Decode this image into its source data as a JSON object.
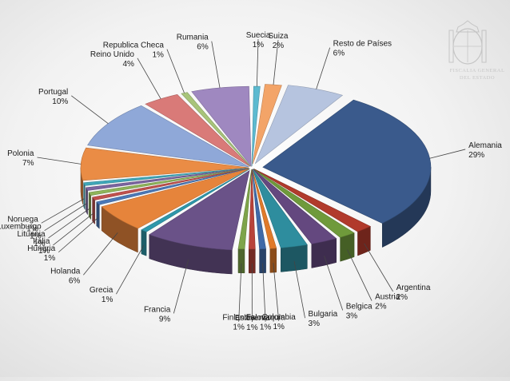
{
  "chart_data": {
    "type": "pie",
    "title": "",
    "slices": [
      {
        "label": "Alemania",
        "value": 29,
        "color": "#3a5a8c"
      },
      {
        "label": "Argentina",
        "value": 2,
        "color": "#b13a2c"
      },
      {
        "label": "Austria",
        "value": 2,
        "color": "#6f9a3b"
      },
      {
        "label": "Belgica",
        "value": 3,
        "color": "#64487f"
      },
      {
        "label": "Bulgaria",
        "value": 3,
        "color": "#2e8d9e"
      },
      {
        "label": "Colombia",
        "value": 1,
        "color": "#e07a2a"
      },
      {
        "label": "Eslovaquia",
        "value": 1,
        "color": "#3f6aa8"
      },
      {
        "label": "Eslovenia",
        "value": 1,
        "color": "#b8433a"
      },
      {
        "label": "Finlandia",
        "value": 1,
        "color": "#7ea44a"
      },
      {
        "label": "Francia",
        "value": 9,
        "color": "#6a5288"
      },
      {
        "label": "Grecia",
        "value": 1,
        "color": "#2e97aa"
      },
      {
        "label": "Holanda",
        "value": 6,
        "color": "#e6843b"
      },
      {
        "label": "Hungria",
        "value": 1,
        "color": "#4a78b8"
      },
      {
        "label": "Italia",
        "value": 1,
        "color": "#c0504d"
      },
      {
        "label": "Lituania",
        "value": 1,
        "color": "#8eb45a"
      },
      {
        "label": "Luxemburgo",
        "value": 1,
        "color": "#7a64a0"
      },
      {
        "label": "Noruega",
        "value": 1,
        "color": "#3fa6b8"
      },
      {
        "label": "Polonia",
        "value": 7,
        "color": "#ea8c45"
      },
      {
        "label": "Portugal",
        "value": 10,
        "color": "#8fa8d8"
      },
      {
        "label": "Reino Unido",
        "value": 4,
        "color": "#d97a78"
      },
      {
        "label": "Republica Checa",
        "value": 1,
        "color": "#a8c47a"
      },
      {
        "label": "Rumania",
        "value": 6,
        "color": "#9f88c0"
      },
      {
        "label": "Suecia",
        "value": 1,
        "color": "#5cbad0"
      },
      {
        "label": "Suiza",
        "value": 2,
        "color": "#f3a468"
      },
      {
        "label": "Resto de Países",
        "value": 6,
        "color": "#b6c4df"
      }
    ],
    "legend": "none",
    "data_labels": "outside with leader lines"
  },
  "logo": {
    "line1": "FISCALIA GENERAL",
    "line2": "DEL ESTADO"
  }
}
